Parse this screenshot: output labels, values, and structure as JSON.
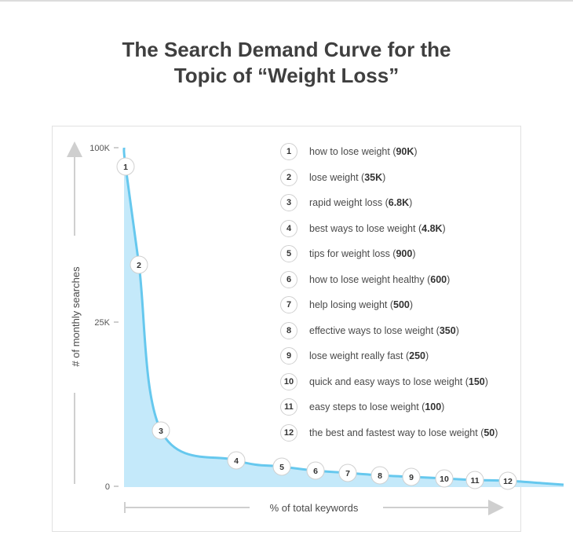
{
  "title_line1": "The Search Demand Curve for the",
  "title_line2": "Topic of “Weight Loss”",
  "colors": {
    "curve": "#66c8ee",
    "fill": "#c4e9fa",
    "axis": "#cfcfcf",
    "text": "#4a4a4a"
  },
  "chart_data": {
    "type": "area",
    "xlabel": "% of total keywords",
    "ylabel": "# of monthly searches",
    "y_ticks": [
      {
        "label": "100K",
        "value": 100000
      },
      {
        "label": "25K",
        "value": 25000
      },
      {
        "label": "0",
        "value": 0
      }
    ],
    "grid": false,
    "legend_placement": "top-right",
    "points": [
      {
        "rank": "1",
        "keyword": "how to lose weight",
        "value_label": "90K",
        "value": 90000
      },
      {
        "rank": "2",
        "keyword": "lose weight",
        "value_label": "35K",
        "value": 35000
      },
      {
        "rank": "3",
        "keyword": "rapid weight loss",
        "value_label": "6.8K",
        "value": 6800
      },
      {
        "rank": "4",
        "keyword": "best ways to lose weight",
        "value_label": "4.8K",
        "value": 4800
      },
      {
        "rank": "5",
        "keyword": "tips for weight loss",
        "value_label": "900",
        "value": 900
      },
      {
        "rank": "6",
        "keyword": "how to lose weight healthy",
        "value_label": "600",
        "value": 600
      },
      {
        "rank": "7",
        "keyword": "help losing weight",
        "value_label": "500",
        "value": 500
      },
      {
        "rank": "8",
        "keyword": "effective ways to lose weight",
        "value_label": "350",
        "value": 350
      },
      {
        "rank": "9",
        "keyword": "lose weight really fast",
        "value_label": "250",
        "value": 250
      },
      {
        "rank": "10",
        "keyword": "quick and easy ways to lose weight",
        "value_label": "150",
        "value": 150
      },
      {
        "rank": "11",
        "keyword": "easy steps to lose weight",
        "value_label": "100",
        "value": 100
      },
      {
        "rank": "12",
        "keyword": "the best and fastest way to lose weight",
        "value_label": "50",
        "value": 50
      }
    ]
  }
}
